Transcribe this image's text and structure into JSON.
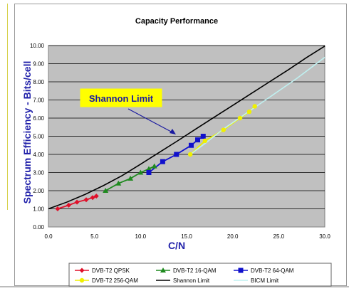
{
  "chart_data": {
    "type": "line",
    "title": "Capacity Performance",
    "xlabel": "C/N",
    "ylabel": "Spectrum Efficiency - Bits/cell",
    "xlim": [
      0,
      30
    ],
    "ylim": [
      0,
      10
    ],
    "x_ticks": [
      "0.0",
      "5.0",
      "10.0",
      "15.0",
      "20.0",
      "25.0",
      "30.0"
    ],
    "y_ticks": [
      "0.00",
      "1.00",
      "2.00",
      "3.00",
      "4.00",
      "5.00",
      "6.00",
      "7.00",
      "8.00",
      "9.00",
      "10.00"
    ],
    "grid": true,
    "legend_position": "bottom",
    "callout": "Shannon Limit",
    "series": [
      {
        "name": "DVB-T2 QPSK",
        "color": "#e0102a",
        "marker": "diamond",
        "x": [
          1.0,
          2.2,
          3.1,
          4.1,
          4.8,
          5.2
        ],
        "y": [
          1.0,
          1.2,
          1.37,
          1.5,
          1.62,
          1.7
        ]
      },
      {
        "name": "DVB-T2 16-QAM",
        "color": "#1f8a1f",
        "marker": "triangle",
        "x": [
          6.2,
          7.6,
          8.9,
          10.0,
          10.9,
          11.5
        ],
        "y": [
          2.0,
          2.4,
          2.67,
          3.0,
          3.2,
          3.35
        ]
      },
      {
        "name": "DVB-T2 64-QAM",
        "color": "#1010cc",
        "marker": "square",
        "x": [
          10.9,
          12.4,
          13.9,
          15.5,
          16.2,
          16.8
        ],
        "y": [
          3.0,
          3.6,
          4.0,
          4.5,
          4.8,
          5.0
        ]
      },
      {
        "name": "DVB-T2 256-QAM",
        "color": "#f0f000",
        "marker": "circle",
        "x": [
          15.4,
          17.0,
          19.0,
          20.8,
          21.8,
          22.4
        ],
        "y": [
          4.0,
          4.75,
          5.35,
          6.0,
          6.35,
          6.65
        ]
      },
      {
        "name": "Shannon Limit",
        "color": "#000000",
        "marker": "none",
        "x": [
          0,
          2,
          4,
          6,
          8,
          10,
          12,
          14,
          16,
          18,
          20,
          22,
          24,
          26,
          28,
          30
        ],
        "y": [
          1.0,
          1.37,
          1.8,
          2.29,
          2.83,
          3.46,
          4.1,
          4.74,
          5.4,
          6.05,
          6.7,
          7.35,
          8.0,
          8.65,
          9.33,
          9.97
        ]
      },
      {
        "name": "BICM Limit",
        "color": "#bff0f0",
        "marker": "none",
        "x": [
          15.4,
          17,
          19,
          21,
          23,
          25,
          27,
          30
        ],
        "y": [
          4.0,
          4.6,
          5.4,
          6.1,
          6.8,
          7.5,
          8.2,
          9.35
        ]
      }
    ]
  }
}
